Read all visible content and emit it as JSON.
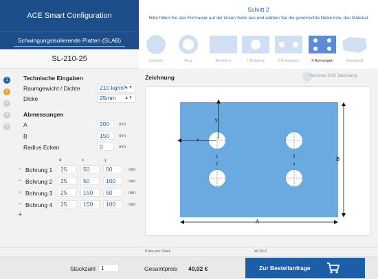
{
  "app": {
    "title": "ACE Smart Configuration",
    "product_type": "Schwingungsisolierende Platten (SLAB)",
    "product_code": "SL-210-25"
  },
  "steps": [
    "1",
    "2",
    "3",
    "4",
    "5"
  ],
  "form": {
    "technical_heading": "Technische Eingaben",
    "density_label": "Raumgewicht / Dichte",
    "density_value": "210 kg/m³",
    "thickness_label": "Dicke",
    "thickness_value": "25mm",
    "dimensions_heading": "Abmessungen",
    "a_label": "A",
    "a_value": "200",
    "b_label": "B",
    "b_value": "150",
    "radius_label": "Radius Ecken",
    "radius_value": "0",
    "unit": "mm",
    "bore_columns": [
      "ø",
      "x",
      "y"
    ],
    "bores": [
      {
        "label": "Bohrung 1",
        "d": "25",
        "x": "50",
        "y": "50"
      },
      {
        "label": "Bohrung 2",
        "d": "25",
        "x": "50",
        "y": "100"
      },
      {
        "label": "Bohrung 3",
        "d": "25",
        "x": "150",
        "y": "50"
      },
      {
        "label": "Bohrung 4",
        "d": "25",
        "x": "150",
        "y": "100"
      }
    ],
    "minus": "-",
    "plus": "+"
  },
  "step_header": {
    "title": "Schritt 2",
    "description": "Bitte füllen Sie das Formaular auf der linken Seite aus und wählen Sie die gewünschte Dicke bzw. das Material"
  },
  "shapes": [
    {
      "label": "Scheibe",
      "selected": false
    },
    {
      "label": "Ring",
      "selected": false
    },
    {
      "label": "Rechteck",
      "selected": false
    },
    {
      "label": "1 Bohrung",
      "selected": false
    },
    {
      "label": "2 Bohrungen",
      "selected": false
    },
    {
      "label": "4 Bohrungen",
      "selected": true
    },
    {
      "label": "individuell",
      "selected": false
    }
  ],
  "drawing": {
    "title": "Zeichnung",
    "cad_preview": "Vorschau CAD Zeichnung",
    "label_x": "x",
    "label_y": "y",
    "label_a": "A",
    "label_b": "B",
    "hole_labels": [
      "1",
      "2",
      "3",
      "4"
    ],
    "plate_color": "#6aaae0"
  },
  "footer": {
    "price_per_piece_label": "Preis pro Stück",
    "price_per_piece_value": "40,02 €",
    "quantity_label": "Stückzahl",
    "quantity_value": "1",
    "total_label": "Gesamtpreis",
    "total_value": "40,02 €",
    "order_button": "Zur Bestellanfrage"
  },
  "colors": {
    "brand": "#1d4e89",
    "accent": "#1d5ea8",
    "step_active": "#f0a020"
  }
}
